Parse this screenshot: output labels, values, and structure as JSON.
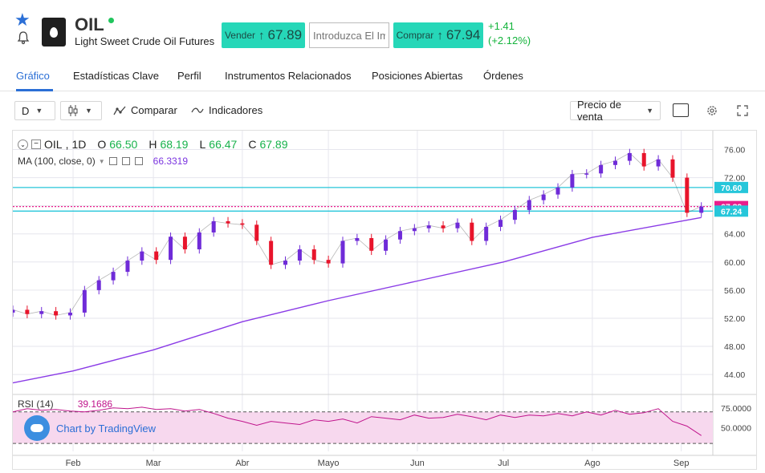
{
  "header": {
    "symbol": "OIL",
    "instrument_name": "Light Sweet Crude Oil Futures",
    "sell_label": "Vender",
    "sell_price": "67.89",
    "quantity_placeholder": "Introduzca El Imp",
    "buy_label": "Comprar",
    "buy_price": "67.94",
    "change_abs": "+1.41",
    "change_pct": "(+2.12%)",
    "change_color": "#12b33a",
    "button_color": "#26d7b8"
  },
  "tabs": [
    "Gráfico",
    "Estadísticas Clave",
    "Perfil",
    "Instrumentos Relacionados",
    "Posiciones Abiertas",
    "Órdenes"
  ],
  "active_tab": "Gráfico",
  "toolbar": {
    "interval": "D",
    "compare": "Comparar",
    "indicators": "Indicadores",
    "price_type": "Precio de venta",
    "icons": [
      "candlestick-icon",
      "compare-icon",
      "indicators-icon",
      "checkbox-icon",
      "settings-icon",
      "fullscreen-icon"
    ]
  },
  "legend": {
    "symbol": "OIL",
    "interval": "1D",
    "o_label": "O",
    "o_value": "66.50",
    "h_label": "H",
    "h_value": "68.19",
    "l_label": "L",
    "l_value": "66.47",
    "c_label": "C",
    "c_value": "67.89",
    "ma_label": "MA (100, close, 0)",
    "ma_value": "66.3319",
    "rsi_label": "RSI (14)",
    "rsi_value": "39.1686"
  },
  "watermark": "Chart by TradingView",
  "chart_data": {
    "type": "candlestick",
    "title": "",
    "price_axis": {
      "ticks": [
        44,
        48,
        52,
        56,
        60,
        64,
        68,
        72,
        76
      ],
      "tick_labels": [
        "44.00",
        "48.00",
        "52.00",
        "56.00",
        "60.00",
        "64.00",
        "68.00",
        "72.00",
        "76.00"
      ],
      "range": [
        41.5,
        78.0
      ]
    },
    "time_axis": {
      "labels": [
        "Feb",
        "Mar",
        "Abr",
        "Mayo",
        "Jun",
        "Jul",
        "Ago",
        "Sep"
      ],
      "label_dates": [
        "2018-02-01",
        "2018-03-01",
        "2018-04-01",
        "2018-05-01",
        "2018-06-01",
        "2018-07-01",
        "2018-08-01",
        "2018-09-01"
      ],
      "range": [
        "2018-01-11",
        "2018-09-12"
      ]
    },
    "horizontal_lines": [
      {
        "price": 70.6,
        "label": "70.60",
        "color": "#26c6da"
      },
      {
        "price": 67.89,
        "label": "67.89",
        "color": "#e91e8c"
      },
      {
        "price": 67.24,
        "label": "67.24",
        "color": "#26c6da"
      }
    ],
    "series": [
      {
        "name": "OIL",
        "points": [
          {
            "date": "2018-01-11",
            "y": 53.2
          },
          {
            "date": "2018-01-16",
            "y": 52.6
          },
          {
            "date": "2018-01-21",
            "y": 53.0
          },
          {
            "date": "2018-01-26",
            "y": 52.4
          },
          {
            "date": "2018-01-31",
            "y": 52.8
          },
          {
            "date": "2018-02-05",
            "y": 56.0
          },
          {
            "date": "2018-02-10",
            "y": 57.4
          },
          {
            "date": "2018-02-15",
            "y": 58.6
          },
          {
            "date": "2018-02-20",
            "y": 60.2
          },
          {
            "date": "2018-02-25",
            "y": 61.5
          },
          {
            "date": "2018-03-02",
            "y": 60.3
          },
          {
            "date": "2018-03-07",
            "y": 63.6
          },
          {
            "date": "2018-03-12",
            "y": 61.8
          },
          {
            "date": "2018-03-17",
            "y": 64.2
          },
          {
            "date": "2018-03-22",
            "y": 65.8
          },
          {
            "date": "2018-03-27",
            "y": 65.5
          },
          {
            "date": "2018-04-01",
            "y": 65.3
          },
          {
            "date": "2018-04-06",
            "y": 63.0
          },
          {
            "date": "2018-04-11",
            "y": 59.6
          },
          {
            "date": "2018-04-16",
            "y": 60.2
          },
          {
            "date": "2018-04-21",
            "y": 61.8
          },
          {
            "date": "2018-04-26",
            "y": 60.3
          },
          {
            "date": "2018-05-01",
            "y": 59.8
          },
          {
            "date": "2018-05-06",
            "y": 63.0
          },
          {
            "date": "2018-05-11",
            "y": 63.4
          },
          {
            "date": "2018-05-16",
            "y": 61.6
          },
          {
            "date": "2018-05-21",
            "y": 63.2
          },
          {
            "date": "2018-05-26",
            "y": 64.4
          },
          {
            "date": "2018-05-31",
            "y": 64.8
          },
          {
            "date": "2018-06-05",
            "y": 65.2
          },
          {
            "date": "2018-06-10",
            "y": 64.8
          },
          {
            "date": "2018-06-15",
            "y": 65.6
          },
          {
            "date": "2018-06-20",
            "y": 63.0
          },
          {
            "date": "2018-06-25",
            "y": 65.0
          },
          {
            "date": "2018-06-30",
            "y": 66.0
          },
          {
            "date": "2018-07-05",
            "y": 67.4
          },
          {
            "date": "2018-07-10",
            "y": 68.8
          },
          {
            "date": "2018-07-15",
            "y": 69.6
          },
          {
            "date": "2018-07-20",
            "y": 70.6
          },
          {
            "date": "2018-07-25",
            "y": 72.5
          },
          {
            "date": "2018-07-30",
            "y": 72.6
          },
          {
            "date": "2018-08-04",
            "y": 73.8
          },
          {
            "date": "2018-08-09",
            "y": 74.4
          },
          {
            "date": "2018-08-14",
            "y": 75.5
          },
          {
            "date": "2018-08-19",
            "y": 73.6
          },
          {
            "date": "2018-08-24",
            "y": 74.6
          },
          {
            "date": "2018-08-29",
            "y": 72.0
          },
          {
            "date": "2018-09-03",
            "y": 67.0
          },
          {
            "date": "2018-09-08",
            "y": 67.9
          }
        ]
      },
      {
        "name": "MA (100, close, 0)",
        "points": [
          {
            "date": "2018-01-11",
            "y": 42.8
          },
          {
            "date": "2018-02-01",
            "y": 44.5
          },
          {
            "date": "2018-03-01",
            "y": 47.5
          },
          {
            "date": "2018-04-01",
            "y": 51.5
          },
          {
            "date": "2018-05-01",
            "y": 54.5
          },
          {
            "date": "2018-06-01",
            "y": 57.3
          },
          {
            "date": "2018-07-01",
            "y": 60.0
          },
          {
            "date": "2018-08-01",
            "y": 63.5
          },
          {
            "date": "2018-09-08",
            "y": 66.33
          }
        ]
      }
    ],
    "rsi": {
      "label": "RSI (14)",
      "ticks": [
        50,
        75
      ],
      "tick_labels": [
        "50.0000",
        "75.0000"
      ],
      "band": [
        30,
        70
      ],
      "values": [
        70,
        74,
        72,
        73,
        71,
        70,
        72,
        75,
        74,
        76,
        73,
        74,
        71,
        73,
        68,
        62,
        58,
        53,
        58,
        56,
        54,
        60,
        58,
        61,
        56,
        64,
        62,
        60,
        66,
        62,
        63,
        67,
        64,
        60,
        66,
        63,
        66,
        65,
        68,
        65,
        70,
        66,
        72,
        67,
        69,
        74,
        58,
        52,
        40
      ]
    }
  }
}
